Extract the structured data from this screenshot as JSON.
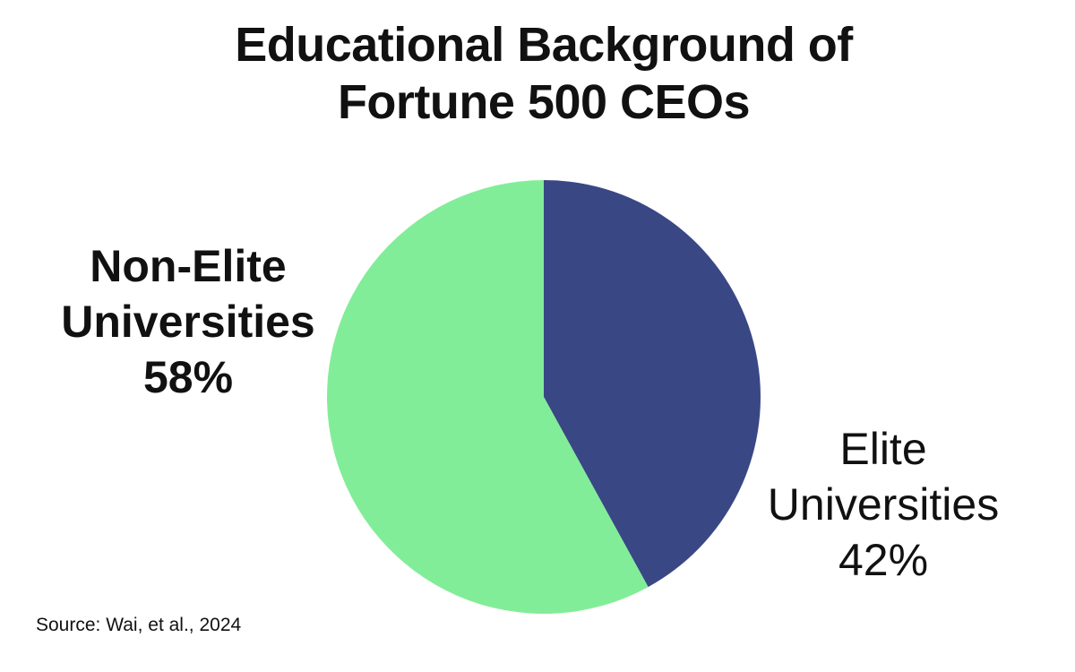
{
  "chart_data": {
    "type": "pie",
    "title": [
      "Educational Background of",
      "Fortune 500 CEOs"
    ],
    "slices": [
      {
        "name": [
          "Elite",
          "Universities"
        ],
        "value": 42,
        "value_label": "42%",
        "color": "#3a4785"
      },
      {
        "name": [
          "Non-Elite",
          "Universities"
        ],
        "value": 58,
        "value_label": "58%",
        "color": "#82ed98"
      }
    ],
    "start_angle": "12 o'clock",
    "direction": "clockwise",
    "legend": "none"
  },
  "source": "Source: Wai, et al., 2024"
}
